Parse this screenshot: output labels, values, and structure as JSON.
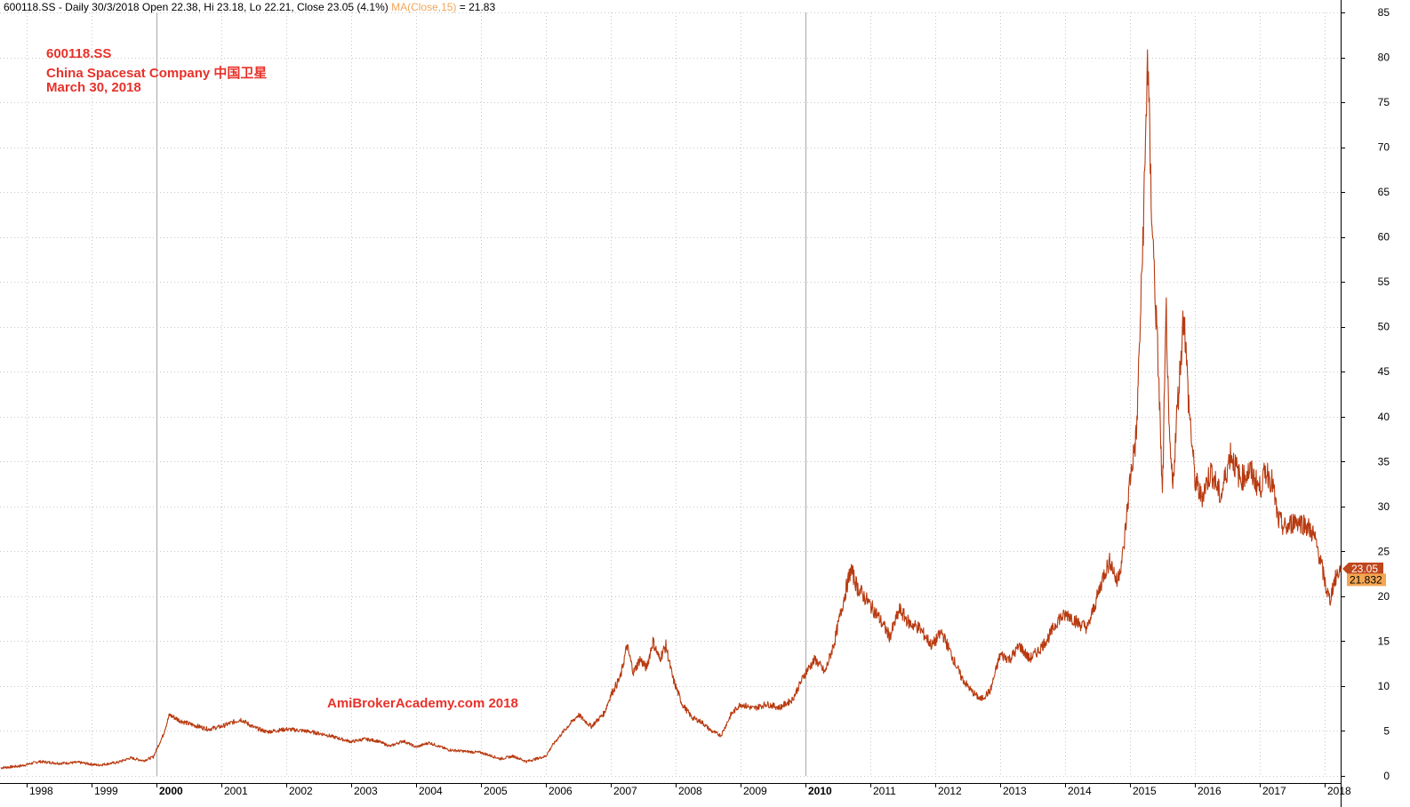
{
  "header": {
    "info": "600118.SS - Daily 30/3/2018 Open 22.38, Hi 23.18, Lo 22.21, Close 23.05 (4.1%)",
    "ma_label": "MA(Close,15)",
    "ma_value": "= 21.83"
  },
  "annotation": {
    "ticker": "600118.SS",
    "company": "China Spacesat Company  中国卫星",
    "date": "March 30, 2018"
  },
  "watermark": "AmiBrokerAcademy.com   2018",
  "colors": {
    "price": "#b83a10",
    "ma": "#f2a65a",
    "grid": "#c8c8c8",
    "last_close_badge": "#c0461c",
    "ma_badge": "#f4a652"
  },
  "chart_data": {
    "type": "line",
    "title": "",
    "xlabel": "",
    "ylabel": "",
    "ylim": [
      0,
      85
    ],
    "y_ticks": [
      0,
      5,
      10,
      15,
      20,
      25,
      30,
      35,
      40,
      45,
      50,
      55,
      60,
      65,
      70,
      75,
      80,
      85
    ],
    "x_ticks": [
      {
        "label": "1998",
        "x": 1998.0,
        "bold": false
      },
      {
        "label": "1999",
        "x": 1999.0,
        "bold": false
      },
      {
        "label": "2000",
        "x": 2000.0,
        "bold": true
      },
      {
        "label": "2001",
        "x": 2001.0,
        "bold": false
      },
      {
        "label": "2002",
        "x": 2002.0,
        "bold": false
      },
      {
        "label": "2003",
        "x": 2003.0,
        "bold": false
      },
      {
        "label": "2004",
        "x": 2004.0,
        "bold": false
      },
      {
        "label": "2005",
        "x": 2005.0,
        "bold": false
      },
      {
        "label": "2006",
        "x": 2006.0,
        "bold": false
      },
      {
        "label": "2007",
        "x": 2007.0,
        "bold": false
      },
      {
        "label": "2008",
        "x": 2008.0,
        "bold": false
      },
      {
        "label": "2009",
        "x": 2009.0,
        "bold": false
      },
      {
        "label": "2010",
        "x": 2010.0,
        "bold": true
      },
      {
        "label": "2011",
        "x": 2011.0,
        "bold": false
      },
      {
        "label": "2012",
        "x": 2012.0,
        "bold": false
      },
      {
        "label": "2013",
        "x": 2013.0,
        "bold": false
      },
      {
        "label": "2014",
        "x": 2014.0,
        "bold": false
      },
      {
        "label": "2015",
        "x": 2015.0,
        "bold": false
      },
      {
        "label": "2016",
        "x": 2016.0,
        "bold": false
      },
      {
        "label": "2017",
        "x": 2017.0,
        "bold": false
      },
      {
        "label": "2018",
        "x": 2018.0,
        "bold": false
      }
    ],
    "xlim": [
      1997.6,
      2018.27
    ],
    "grid": true,
    "last_close": "23.05",
    "ma_last": "21.832",
    "series": [
      {
        "name": "Close",
        "points": [
          [
            1997.6,
            0.9
          ],
          [
            1997.9,
            1.1
          ],
          [
            1998.2,
            1.6
          ],
          [
            1998.5,
            1.4
          ],
          [
            1998.8,
            1.5
          ],
          [
            1999.1,
            1.2
          ],
          [
            1999.4,
            1.5
          ],
          [
            1999.6,
            2.0
          ],
          [
            1999.8,
            1.7
          ],
          [
            1999.95,
            2.1
          ],
          [
            2000.1,
            4.5
          ],
          [
            2000.2,
            6.8
          ],
          [
            2000.35,
            6.2
          ],
          [
            2000.5,
            5.8
          ],
          [
            2000.8,
            5.2
          ],
          [
            2001.0,
            5.5
          ],
          [
            2001.3,
            6.3
          ],
          [
            2001.5,
            5.4
          ],
          [
            2001.7,
            4.9
          ],
          [
            2002.0,
            5.2
          ],
          [
            2002.3,
            5.0
          ],
          [
            2002.6,
            4.6
          ],
          [
            2003.0,
            3.8
          ],
          [
            2003.2,
            4.1
          ],
          [
            2003.4,
            3.9
          ],
          [
            2003.6,
            3.3
          ],
          [
            2003.8,
            3.9
          ],
          [
            2004.0,
            3.2
          ],
          [
            2004.2,
            3.7
          ],
          [
            2004.5,
            2.9
          ],
          [
            2004.8,
            2.7
          ],
          [
            2005.0,
            2.6
          ],
          [
            2005.3,
            1.9
          ],
          [
            2005.5,
            2.2
          ],
          [
            2005.7,
            1.6
          ],
          [
            2005.9,
            2.0
          ],
          [
            2006.0,
            2.2
          ],
          [
            2006.1,
            3.4
          ],
          [
            2006.3,
            5.2
          ],
          [
            2006.5,
            6.8
          ],
          [
            2006.7,
            5.5
          ],
          [
            2006.9,
            7.0
          ],
          [
            2007.0,
            9.0
          ],
          [
            2007.15,
            11.0
          ],
          [
            2007.25,
            14.5
          ],
          [
            2007.35,
            11.5
          ],
          [
            2007.45,
            13.0
          ],
          [
            2007.55,
            12.0
          ],
          [
            2007.65,
            15.0
          ],
          [
            2007.75,
            13.0
          ],
          [
            2007.85,
            14.5
          ],
          [
            2007.95,
            11.0
          ],
          [
            2008.1,
            8.0
          ],
          [
            2008.25,
            6.5
          ],
          [
            2008.4,
            6.0
          ],
          [
            2008.55,
            5.0
          ],
          [
            2008.7,
            4.5
          ],
          [
            2008.85,
            6.8
          ],
          [
            2009.0,
            8.0
          ],
          [
            2009.2,
            7.5
          ],
          [
            2009.4,
            8.0
          ],
          [
            2009.6,
            7.6
          ],
          [
            2009.8,
            8.5
          ],
          [
            2010.0,
            11.5
          ],
          [
            2010.15,
            13.0
          ],
          [
            2010.3,
            11.5
          ],
          [
            2010.45,
            15.0
          ],
          [
            2010.6,
            20.0
          ],
          [
            2010.7,
            23.0
          ],
          [
            2010.8,
            21.0
          ],
          [
            2010.95,
            19.5
          ],
          [
            2011.1,
            18.0
          ],
          [
            2011.3,
            15.5
          ],
          [
            2011.45,
            18.5
          ],
          [
            2011.6,
            17.0
          ],
          [
            2011.75,
            16.5
          ],
          [
            2011.95,
            14.5
          ],
          [
            2012.1,
            16.0
          ],
          [
            2012.25,
            13.5
          ],
          [
            2012.4,
            11.0
          ],
          [
            2012.55,
            9.5
          ],
          [
            2012.7,
            8.5
          ],
          [
            2012.85,
            9.5
          ],
          [
            2013.0,
            13.5
          ],
          [
            2013.15,
            13.0
          ],
          [
            2013.3,
            14.5
          ],
          [
            2013.45,
            13.0
          ],
          [
            2013.6,
            14.0
          ],
          [
            2013.75,
            15.5
          ],
          [
            2013.9,
            17.5
          ],
          [
            2014.05,
            18.0
          ],
          [
            2014.2,
            17.0
          ],
          [
            2014.35,
            16.5
          ],
          [
            2014.5,
            20.0
          ],
          [
            2014.6,
            22.5
          ],
          [
            2014.7,
            24.0
          ],
          [
            2014.8,
            21.5
          ],
          [
            2014.9,
            25.0
          ],
          [
            2015.0,
            33.0
          ],
          [
            2015.1,
            38.0
          ],
          [
            2015.18,
            55.0
          ],
          [
            2015.24,
            70.0
          ],
          [
            2015.27,
            81.0
          ],
          [
            2015.32,
            66.0
          ],
          [
            2015.38,
            55.0
          ],
          [
            2015.44,
            45.0
          ],
          [
            2015.5,
            31.0
          ],
          [
            2015.56,
            52.0
          ],
          [
            2015.6,
            38.0
          ],
          [
            2015.66,
            32.0
          ],
          [
            2015.72,
            40.0
          ],
          [
            2015.78,
            46.0
          ],
          [
            2015.83,
            52.0
          ],
          [
            2015.9,
            42.0
          ],
          [
            2016.0,
            33.0
          ],
          [
            2016.1,
            31.0
          ],
          [
            2016.25,
            34.0
          ],
          [
            2016.4,
            31.0
          ],
          [
            2016.55,
            36.0
          ],
          [
            2016.7,
            33.0
          ],
          [
            2016.85,
            34.0
          ],
          [
            2017.0,
            32.0
          ],
          [
            2017.1,
            34.0
          ],
          [
            2017.2,
            32.5
          ],
          [
            2017.28,
            28.5
          ],
          [
            2017.4,
            27.5
          ],
          [
            2017.55,
            28.5
          ],
          [
            2017.7,
            28.0
          ],
          [
            2017.82,
            27.0
          ],
          [
            2017.92,
            24.5
          ],
          [
            2018.02,
            21.0
          ],
          [
            2018.08,
            19.5
          ],
          [
            2018.14,
            21.5
          ],
          [
            2018.2,
            22.5
          ],
          [
            2018.25,
            23.05
          ]
        ]
      }
    ]
  }
}
